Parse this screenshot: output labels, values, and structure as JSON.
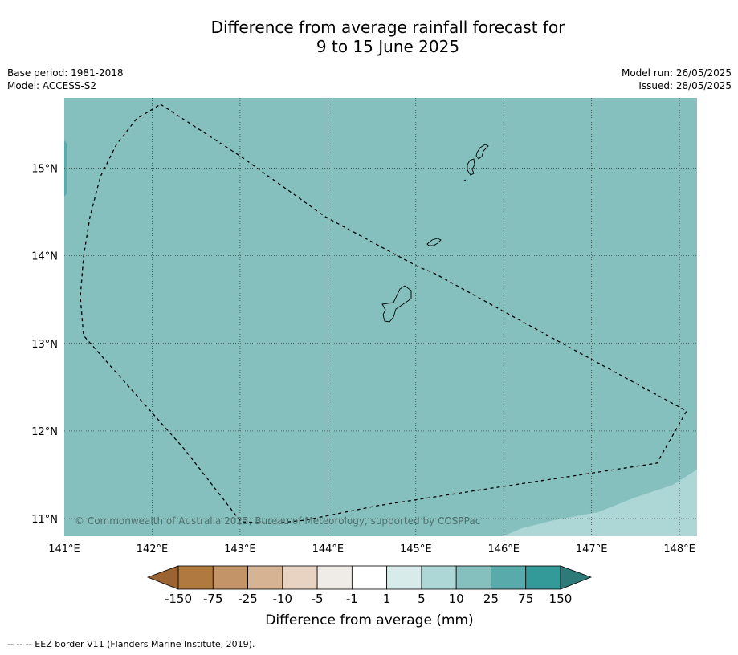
{
  "title": "Difference from average rainfall forecast for\n9 to 15 June 2025",
  "meta_left": {
    "base_period": "Base period: 1981-2018",
    "model": "Model: ACCESS-S2"
  },
  "meta_right": {
    "model_run": "Model run: 26/05/2025",
    "issued": "Issued: 28/05/2025"
  },
  "map": {
    "lon_range": [
      141.0,
      148.2
    ],
    "lat_range": [
      10.8,
      15.8
    ],
    "lon_ticks": [
      {
        "value": 141,
        "label": "141°E"
      },
      {
        "value": 142,
        "label": "142°E"
      },
      {
        "value": 143,
        "label": "143°E"
      },
      {
        "value": 144,
        "label": "144°E"
      },
      {
        "value": 145,
        "label": "145°E"
      },
      {
        "value": 146,
        "label": "146°E"
      },
      {
        "value": 147,
        "label": "147°E"
      },
      {
        "value": 148,
        "label": "148°E"
      }
    ],
    "lat_ticks": [
      {
        "value": 15,
        "label": "15°N"
      },
      {
        "value": 14,
        "label": "14°N"
      },
      {
        "value": 13,
        "label": "13°N"
      },
      {
        "value": 12,
        "label": "12°N"
      },
      {
        "value": 11,
        "label": "11°N"
      }
    ],
    "gridlines": true,
    "background_color": "#85c0bf",
    "copyright": "© Commonwealth of Australia 2025, Bureau of Meteorology, supported by COSPPac"
  },
  "legend": {
    "title": "Difference from average (mm)",
    "labels": [
      "-150",
      "-75",
      "-25",
      "-10",
      "-5",
      "-1",
      "1",
      "5",
      "10",
      "25",
      "75",
      "150"
    ],
    "colors": [
      "#b07a3e",
      "#c29468",
      "#d5b393",
      "#e8d2c1",
      "#efebe7",
      "#ffffff",
      "#d6ebea",
      "#add7d7",
      "#85c0bf",
      "#59abab",
      "#339a99"
    ],
    "extend_low_color": "#9b6232",
    "extend_high_color": "#2d7a78"
  },
  "footnote": "--  --  -- EEZ border V11 (Flanders Marine Institute, 2019)."
}
